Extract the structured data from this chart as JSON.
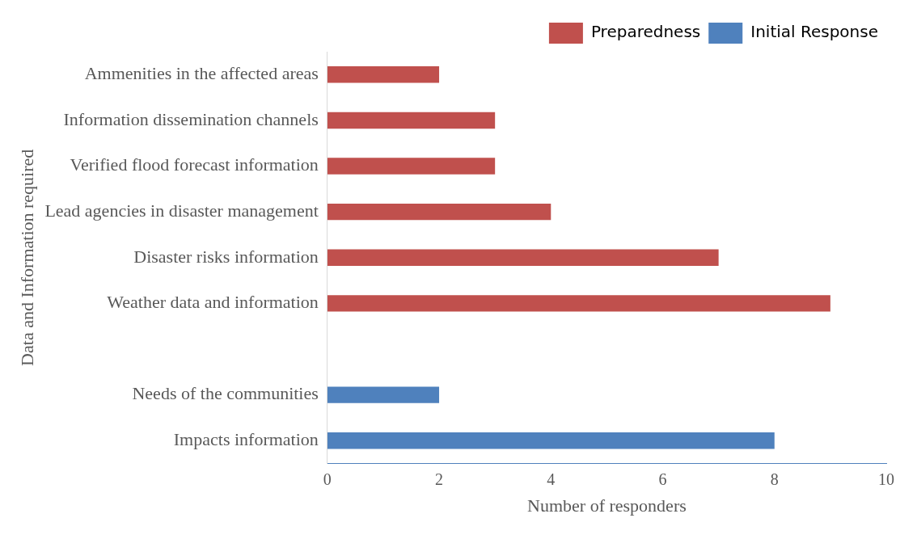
{
  "chart_data": {
    "type": "bar",
    "orientation": "horizontal",
    "xlabel": "Number of responders",
    "ylabel": "Data and Information required",
    "categories": [
      "Ammenities in the affected areas",
      "Information dissemination channels",
      "Verified flood forecast information",
      "Lead agencies in disaster management",
      "Disaster risks information",
      "Weather data and information",
      null,
      "Needs of the communities",
      "Impacts information"
    ],
    "series": [
      {
        "name": "Preparedness",
        "color": "#c0504d",
        "values": [
          2,
          3,
          3,
          4,
          7,
          9,
          null,
          null,
          null
        ]
      },
      {
        "name": "Initial Response",
        "color": "#4f81bd",
        "values": [
          null,
          null,
          null,
          null,
          null,
          null,
          null,
          2,
          8
        ]
      }
    ],
    "xlim": [
      0,
      10
    ],
    "xticks": [
      0,
      2,
      4,
      6,
      8,
      10
    ],
    "grid": false,
    "legend": "top right"
  }
}
